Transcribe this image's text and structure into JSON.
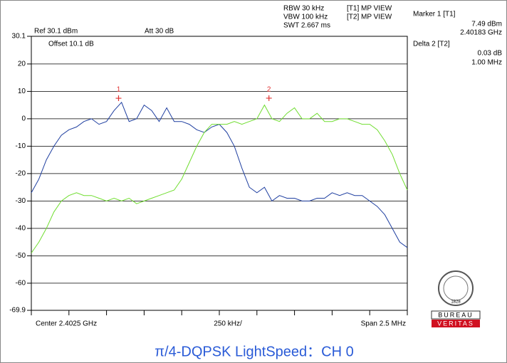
{
  "chart_data": {
    "type": "line",
    "header": {
      "rbw": "RBW 30 kHz",
      "vbw": "VBW 100 kHz",
      "swt": "SWT 2.667 ms",
      "t1": "[T1] MP VIEW",
      "t2": "[T2] MP VIEW",
      "ref": "Ref 30.1 dBm",
      "att": "Att  30 dB",
      "offset": "Offset 10.1 dB"
    },
    "readout": {
      "marker_title": "Marker 1 [T1]",
      "marker_level": "7.49 dBm",
      "marker_freq": "2.40183 GHz",
      "delta_title": "Delta 2 [T2]",
      "delta_level": "0.03 dB",
      "delta_freq": "1.00 MHz"
    },
    "footer": {
      "center": "Center 2.4025 GHz",
      "div": "250 kHz/",
      "span": "Span 2.5 MHz"
    },
    "caption": "π/4-DQPSK LightSpeed：CH 0",
    "logo": {
      "top": "BUREAU",
      "bottom": "VERITAS",
      "year": "1828"
    },
    "xlim": [
      2.40125,
      2.40375
    ],
    "xticks": [
      2.40125,
      2.4015,
      2.40175,
      2.402,
      2.40225,
      2.4025,
      2.40275,
      2.403,
      2.40325,
      2.4035,
      2.40375
    ],
    "ylim": [
      -69.9,
      30.1
    ],
    "yticks": [
      30.1,
      20,
      10,
      0,
      -10,
      -20,
      -30,
      -40,
      -50,
      -60,
      -69.9
    ],
    "grid": true,
    "x": [
      2.40125,
      2.4013,
      2.40135,
      2.4014,
      2.40145,
      2.4015,
      2.40155,
      2.4016,
      2.40165,
      2.4017,
      2.40175,
      2.4018,
      2.40185,
      2.4019,
      2.40195,
      2.402,
      2.40205,
      2.4021,
      2.40215,
      2.4022,
      2.40225,
      2.4023,
      2.40235,
      2.4024,
      2.40245,
      2.4025,
      2.40255,
      2.4026,
      2.40265,
      2.4027,
      2.40275,
      2.4028,
      2.40285,
      2.4029,
      2.40295,
      2.403,
      2.40305,
      2.4031,
      2.40315,
      2.4032,
      2.40325,
      2.4033,
      2.40335,
      2.4034,
      2.40345,
      2.4035,
      2.40355,
      2.4036,
      2.40365,
      2.4037,
      2.40375
    ],
    "series": [
      {
        "name": "[T1]",
        "color": "#1f3fa0",
        "values": [
          -27,
          -22,
          -15,
          -10,
          -6,
          -4,
          -3,
          -1,
          0,
          -2,
          -1,
          3,
          6,
          -1,
          0,
          5,
          3,
          -1,
          4,
          -1,
          -1,
          -2,
          -4,
          -5,
          -3,
          -2,
          -5,
          -10,
          -18,
          -25,
          -27,
          -25,
          -30,
          -28,
          -29,
          -29,
          -30,
          -30,
          -29,
          -29,
          -27,
          -28,
          -27,
          -28,
          -28,
          -30,
          -32,
          -35,
          -40,
          -45,
          -47
        ]
      },
      {
        "name": "[T2]",
        "color": "#70dd30",
        "values": [
          -49,
          -45,
          -40,
          -34,
          -30,
          -28,
          -27,
          -28,
          -28,
          -29,
          -30,
          -29,
          -30,
          -29,
          -31,
          -30,
          -29,
          -28,
          -27,
          -26,
          -22,
          -16,
          -10,
          -5,
          -2,
          -2,
          -2,
          -1,
          -2,
          -1,
          0,
          5,
          0,
          -1,
          2,
          4,
          0,
          0,
          2,
          -1,
          -1,
          0,
          0,
          -1,
          -2,
          -2,
          -4,
          -8,
          -13,
          -20,
          -26
        ]
      }
    ],
    "markers": [
      {
        "label": "1",
        "x": 2.40183,
        "y": 7.49,
        "color": "#e03030"
      },
      {
        "label": "2",
        "x": 2.40283,
        "y": 7.52,
        "color": "#e03030"
      }
    ]
  }
}
